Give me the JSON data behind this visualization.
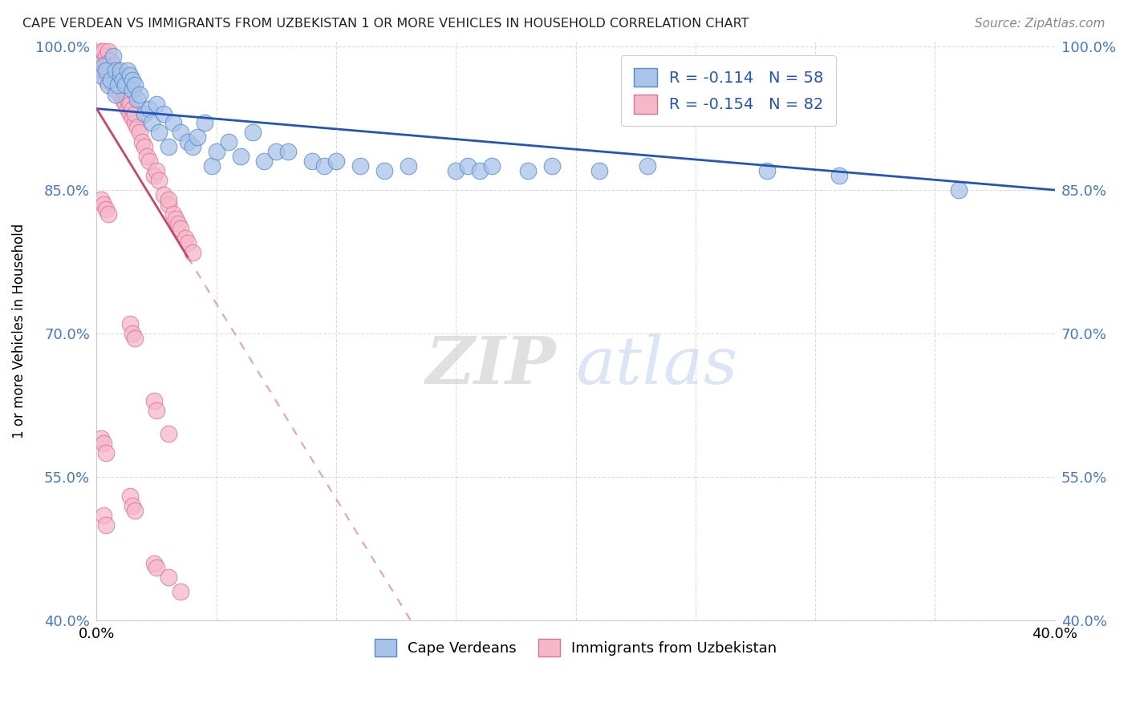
{
  "title": "CAPE VERDEAN VS IMMIGRANTS FROM UZBEKISTAN 1 OR MORE VEHICLES IN HOUSEHOLD CORRELATION CHART",
  "source": "Source: ZipAtlas.com",
  "ylabel": "1 or more Vehicles in Household",
  "xlim": [
    0.0,
    0.4
  ],
  "ylim": [
    0.4,
    1.005
  ],
  "xticks": [
    0.0,
    0.05,
    0.1,
    0.15,
    0.2,
    0.25,
    0.3,
    0.35,
    0.4
  ],
  "yticks": [
    0.4,
    0.55,
    0.7,
    0.85,
    1.0
  ],
  "blue_R": -0.114,
  "blue_N": 58,
  "pink_R": -0.154,
  "pink_N": 82,
  "blue_label": "Cape Verdeans",
  "pink_label": "Immigrants from Uzbekistan",
  "blue_color": "#a8c4e8",
  "pink_color": "#f5b8cb",
  "blue_edge_color": "#5588cc",
  "pink_edge_color": "#e07090",
  "blue_trend_color": "#2255bb",
  "pink_trend_color": "#cc4466",
  "watermark_zip": "ZIP",
  "watermark_atlas": "atlas",
  "blue_scatter_x": [
    0.002,
    0.003,
    0.004,
    0.005,
    0.006,
    0.007,
    0.008,
    0.008,
    0.009,
    0.01,
    0.01,
    0.011,
    0.012,
    0.013,
    0.014,
    0.015,
    0.015,
    0.016,
    0.017,
    0.018,
    0.02,
    0.022,
    0.023,
    0.025,
    0.026,
    0.028,
    0.03,
    0.032,
    0.035,
    0.038,
    0.04,
    0.042,
    0.045,
    0.048,
    0.05,
    0.055,
    0.06,
    0.065,
    0.07,
    0.075,
    0.08,
    0.09,
    0.095,
    0.1,
    0.11,
    0.12,
    0.13,
    0.15,
    0.155,
    0.16,
    0.165,
    0.18,
    0.19,
    0.21,
    0.23,
    0.28,
    0.31,
    0.36
  ],
  "blue_scatter_y": [
    0.97,
    0.98,
    0.975,
    0.96,
    0.965,
    0.99,
    0.975,
    0.95,
    0.96,
    0.97,
    0.975,
    0.965,
    0.96,
    0.975,
    0.97,
    0.955,
    0.965,
    0.96,
    0.945,
    0.95,
    0.93,
    0.935,
    0.92,
    0.94,
    0.91,
    0.93,
    0.895,
    0.92,
    0.91,
    0.9,
    0.895,
    0.905,
    0.92,
    0.875,
    0.89,
    0.9,
    0.885,
    0.91,
    0.88,
    0.89,
    0.89,
    0.88,
    0.875,
    0.88,
    0.875,
    0.87,
    0.875,
    0.87,
    0.875,
    0.87,
    0.875,
    0.87,
    0.875,
    0.87,
    0.875,
    0.87,
    0.865,
    0.85
  ],
  "pink_scatter_x": [
    0.001,
    0.001,
    0.002,
    0.002,
    0.002,
    0.003,
    0.003,
    0.003,
    0.004,
    0.004,
    0.004,
    0.005,
    0.005,
    0.005,
    0.005,
    0.006,
    0.006,
    0.006,
    0.007,
    0.007,
    0.007,
    0.008,
    0.008,
    0.008,
    0.009,
    0.009,
    0.01,
    0.01,
    0.01,
    0.011,
    0.011,
    0.012,
    0.012,
    0.013,
    0.013,
    0.014,
    0.014,
    0.015,
    0.015,
    0.016,
    0.016,
    0.017,
    0.018,
    0.019,
    0.02,
    0.021,
    0.022,
    0.024,
    0.025,
    0.026,
    0.028,
    0.03,
    0.03,
    0.032,
    0.033,
    0.034,
    0.035,
    0.037,
    0.038,
    0.04,
    0.002,
    0.003,
    0.004,
    0.005,
    0.014,
    0.015,
    0.016,
    0.024,
    0.025,
    0.03,
    0.002,
    0.003,
    0.004,
    0.014,
    0.015,
    0.016,
    0.024,
    0.025,
    0.03,
    0.035,
    0.003,
    0.004
  ],
  "pink_scatter_y": [
    0.99,
    0.98,
    0.995,
    0.975,
    0.985,
    0.985,
    0.975,
    0.995,
    0.98,
    0.965,
    0.99,
    0.97,
    0.975,
    0.985,
    0.995,
    0.965,
    0.975,
    0.985,
    0.96,
    0.97,
    0.98,
    0.955,
    0.965,
    0.975,
    0.96,
    0.97,
    0.95,
    0.96,
    0.97,
    0.945,
    0.955,
    0.94,
    0.95,
    0.935,
    0.945,
    0.93,
    0.94,
    0.925,
    0.935,
    0.92,
    0.93,
    0.915,
    0.91,
    0.9,
    0.895,
    0.885,
    0.88,
    0.865,
    0.87,
    0.86,
    0.845,
    0.835,
    0.84,
    0.825,
    0.82,
    0.815,
    0.81,
    0.8,
    0.795,
    0.785,
    0.84,
    0.835,
    0.83,
    0.825,
    0.71,
    0.7,
    0.695,
    0.63,
    0.62,
    0.595,
    0.59,
    0.585,
    0.575,
    0.53,
    0.52,
    0.515,
    0.46,
    0.455,
    0.445,
    0.43,
    0.51,
    0.5
  ]
}
